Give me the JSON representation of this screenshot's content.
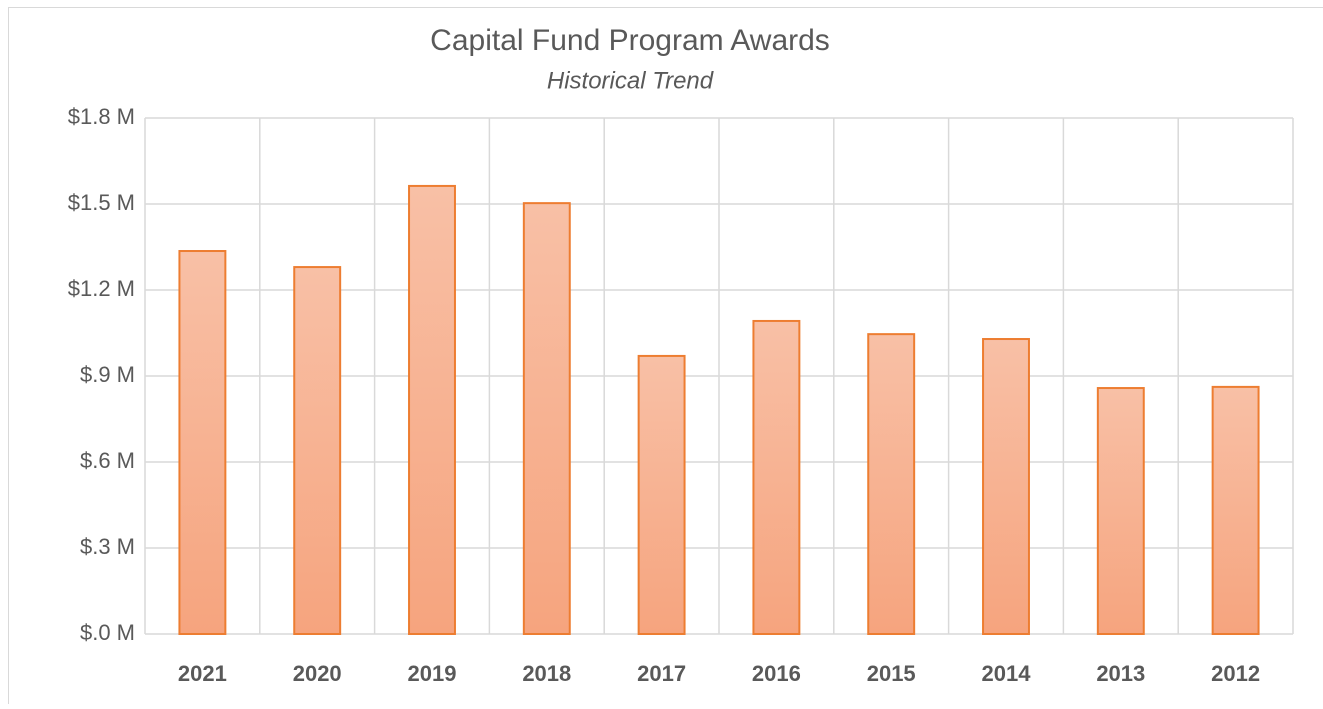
{
  "chart_data": {
    "type": "bar",
    "title": "Capital Fund Program Awards",
    "subtitle": "Historical Trend",
    "categories": [
      "2021",
      "2020",
      "2019",
      "2018",
      "2017",
      "2016",
      "2015",
      "2014",
      "2013",
      "2012"
    ],
    "values": [
      1336000,
      1280000,
      1563000,
      1503000,
      970000,
      1092000,
      1046000,
      1029000,
      858000,
      862000
    ],
    "color": "#ed7d31",
    "ylim": [
      0,
      1800000
    ],
    "yticks": [
      {
        "value": 0,
        "label": "$.0 M"
      },
      {
        "value": 300000,
        "label": "$.3 M"
      },
      {
        "value": 600000,
        "label": "$.6 M"
      },
      {
        "value": 900000,
        "label": "$.9 M"
      },
      {
        "value": 1200000,
        "label": "$1.2 M"
      },
      {
        "value": 1500000,
        "label": "$1.5 M"
      },
      {
        "value": 1800000,
        "label": "$1.8 M"
      }
    ],
    "grid": true
  }
}
